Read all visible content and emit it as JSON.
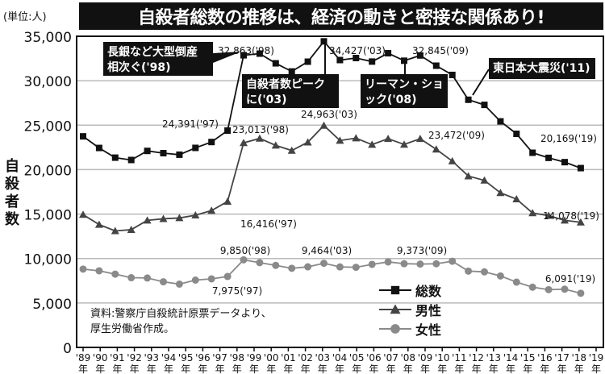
{
  "title": "自殺者総数の推移は、経済の動きと密接な関係あり!",
  "unit_label": "(単位:人)",
  "colors": {
    "total": "#111111",
    "male": "#444444",
    "female": "#8a8a8a",
    "grid": "#bbbbbb",
    "title_bg": "#111111"
  },
  "chart_data": {
    "type": "line",
    "title": "自殺者総数の推移は、経済の動きと密接な関係あり!",
    "ylabel": "自殺者数",
    "xlabel": "",
    "ylim": [
      0,
      35000
    ],
    "grid": true,
    "legend_position": "bottom-center",
    "y_ticks": [
      "0",
      "5,000",
      "10,000",
      "15,000",
      "20,000",
      "25,000",
      "30,000",
      "35,000"
    ],
    "x_tick_labels": [
      "'89",
      "'90",
      "'91",
      "'92",
      "'93",
      "'94",
      "'95",
      "'96",
      "'97",
      "'98",
      "'99",
      "'00",
      "'01",
      "'02",
      "'03",
      "'04",
      "'05",
      "'06",
      "'07",
      "'08",
      "'09",
      "'10",
      "'11",
      "'12",
      "'13",
      "'14",
      "'15",
      "'16",
      "'17",
      "'18",
      "'19"
    ],
    "x_tick_suffix": "年",
    "x": [
      1988,
      1989,
      1990,
      1991,
      1992,
      1993,
      1994,
      1995,
      1996,
      1997,
      1998,
      1999,
      2000,
      2001,
      2002,
      2003,
      2004,
      2005,
      2006,
      2007,
      2008,
      2009,
      2010,
      2011,
      2012,
      2013,
      2014,
      2015,
      2016,
      2017,
      2018,
      2019
    ],
    "series": [
      {
        "name": "総数",
        "marker": "square",
        "values": [
          23742,
          22436,
          21346,
          21084,
          22104,
          21851,
          21679,
          22445,
          23104,
          24391,
          32863,
          33048,
          31957,
          31042,
          32143,
          34427,
          32325,
          32552,
          32155,
          33093,
          32249,
          32845,
          31690,
          30651,
          27858,
          27283,
          25427,
          24025,
          21897,
          21321,
          20840,
          20169
        ]
      },
      {
        "name": "男性",
        "marker": "triangle",
        "values": [
          14934,
          13818,
          13102,
          13242,
          14296,
          14468,
          14560,
          14874,
          15393,
          16416,
          23013,
          23512,
          22727,
          22144,
          23080,
          24963,
          23272,
          23540,
          22813,
          23478,
          22831,
          23472,
          22283,
          20955,
          19273,
          18787,
          17386,
          16681,
          15121,
          14826,
          14290,
          14078
        ]
      },
      {
        "name": "女性",
        "marker": "circle",
        "values": [
          8808,
          8618,
          8244,
          7842,
          7808,
          7383,
          7119,
          7571,
          7711,
          7975,
          9850,
          9536,
          9230,
          8898,
          9063,
          9464,
          9053,
          9012,
          9342,
          9615,
          9418,
          9373,
          9407,
          9696,
          8585,
          8496,
          8041,
          7344,
          6776,
          6495,
          6550,
          6091
        ]
      }
    ],
    "data_labels": [
      {
        "text": "32,863('98)"
      },
      {
        "text": "34,427('03)"
      },
      {
        "text": "32,845('09)"
      },
      {
        "text": "24,391('97)"
      },
      {
        "text": "23,013('98)"
      },
      {
        "text": "24,963('03)"
      },
      {
        "text": "23,472('09)"
      },
      {
        "text": "20,169('19)"
      },
      {
        "text": "16,416('97)"
      },
      {
        "text": "14,078('19)"
      },
      {
        "text": "9,850('98)"
      },
      {
        "text": "9,464('03)"
      },
      {
        "text": "9,373('09)"
      },
      {
        "text": "7,975('97)"
      },
      {
        "text": "6,091('19)"
      }
    ],
    "annotations": [
      {
        "lines": [
          "長銀など大型倒産",
          "相次ぐ('98)"
        ]
      },
      {
        "lines": [
          "自殺者数ピーク",
          "に('03)"
        ]
      },
      {
        "lines": [
          "リーマン・ショ",
          "ック('08)"
        ]
      },
      {
        "lines": [
          "東日本大震災('11)"
        ]
      }
    ],
    "source_note": [
      "資料:警察庁自殺統計原票データより、",
      "厚生労働省作成。"
    ]
  }
}
